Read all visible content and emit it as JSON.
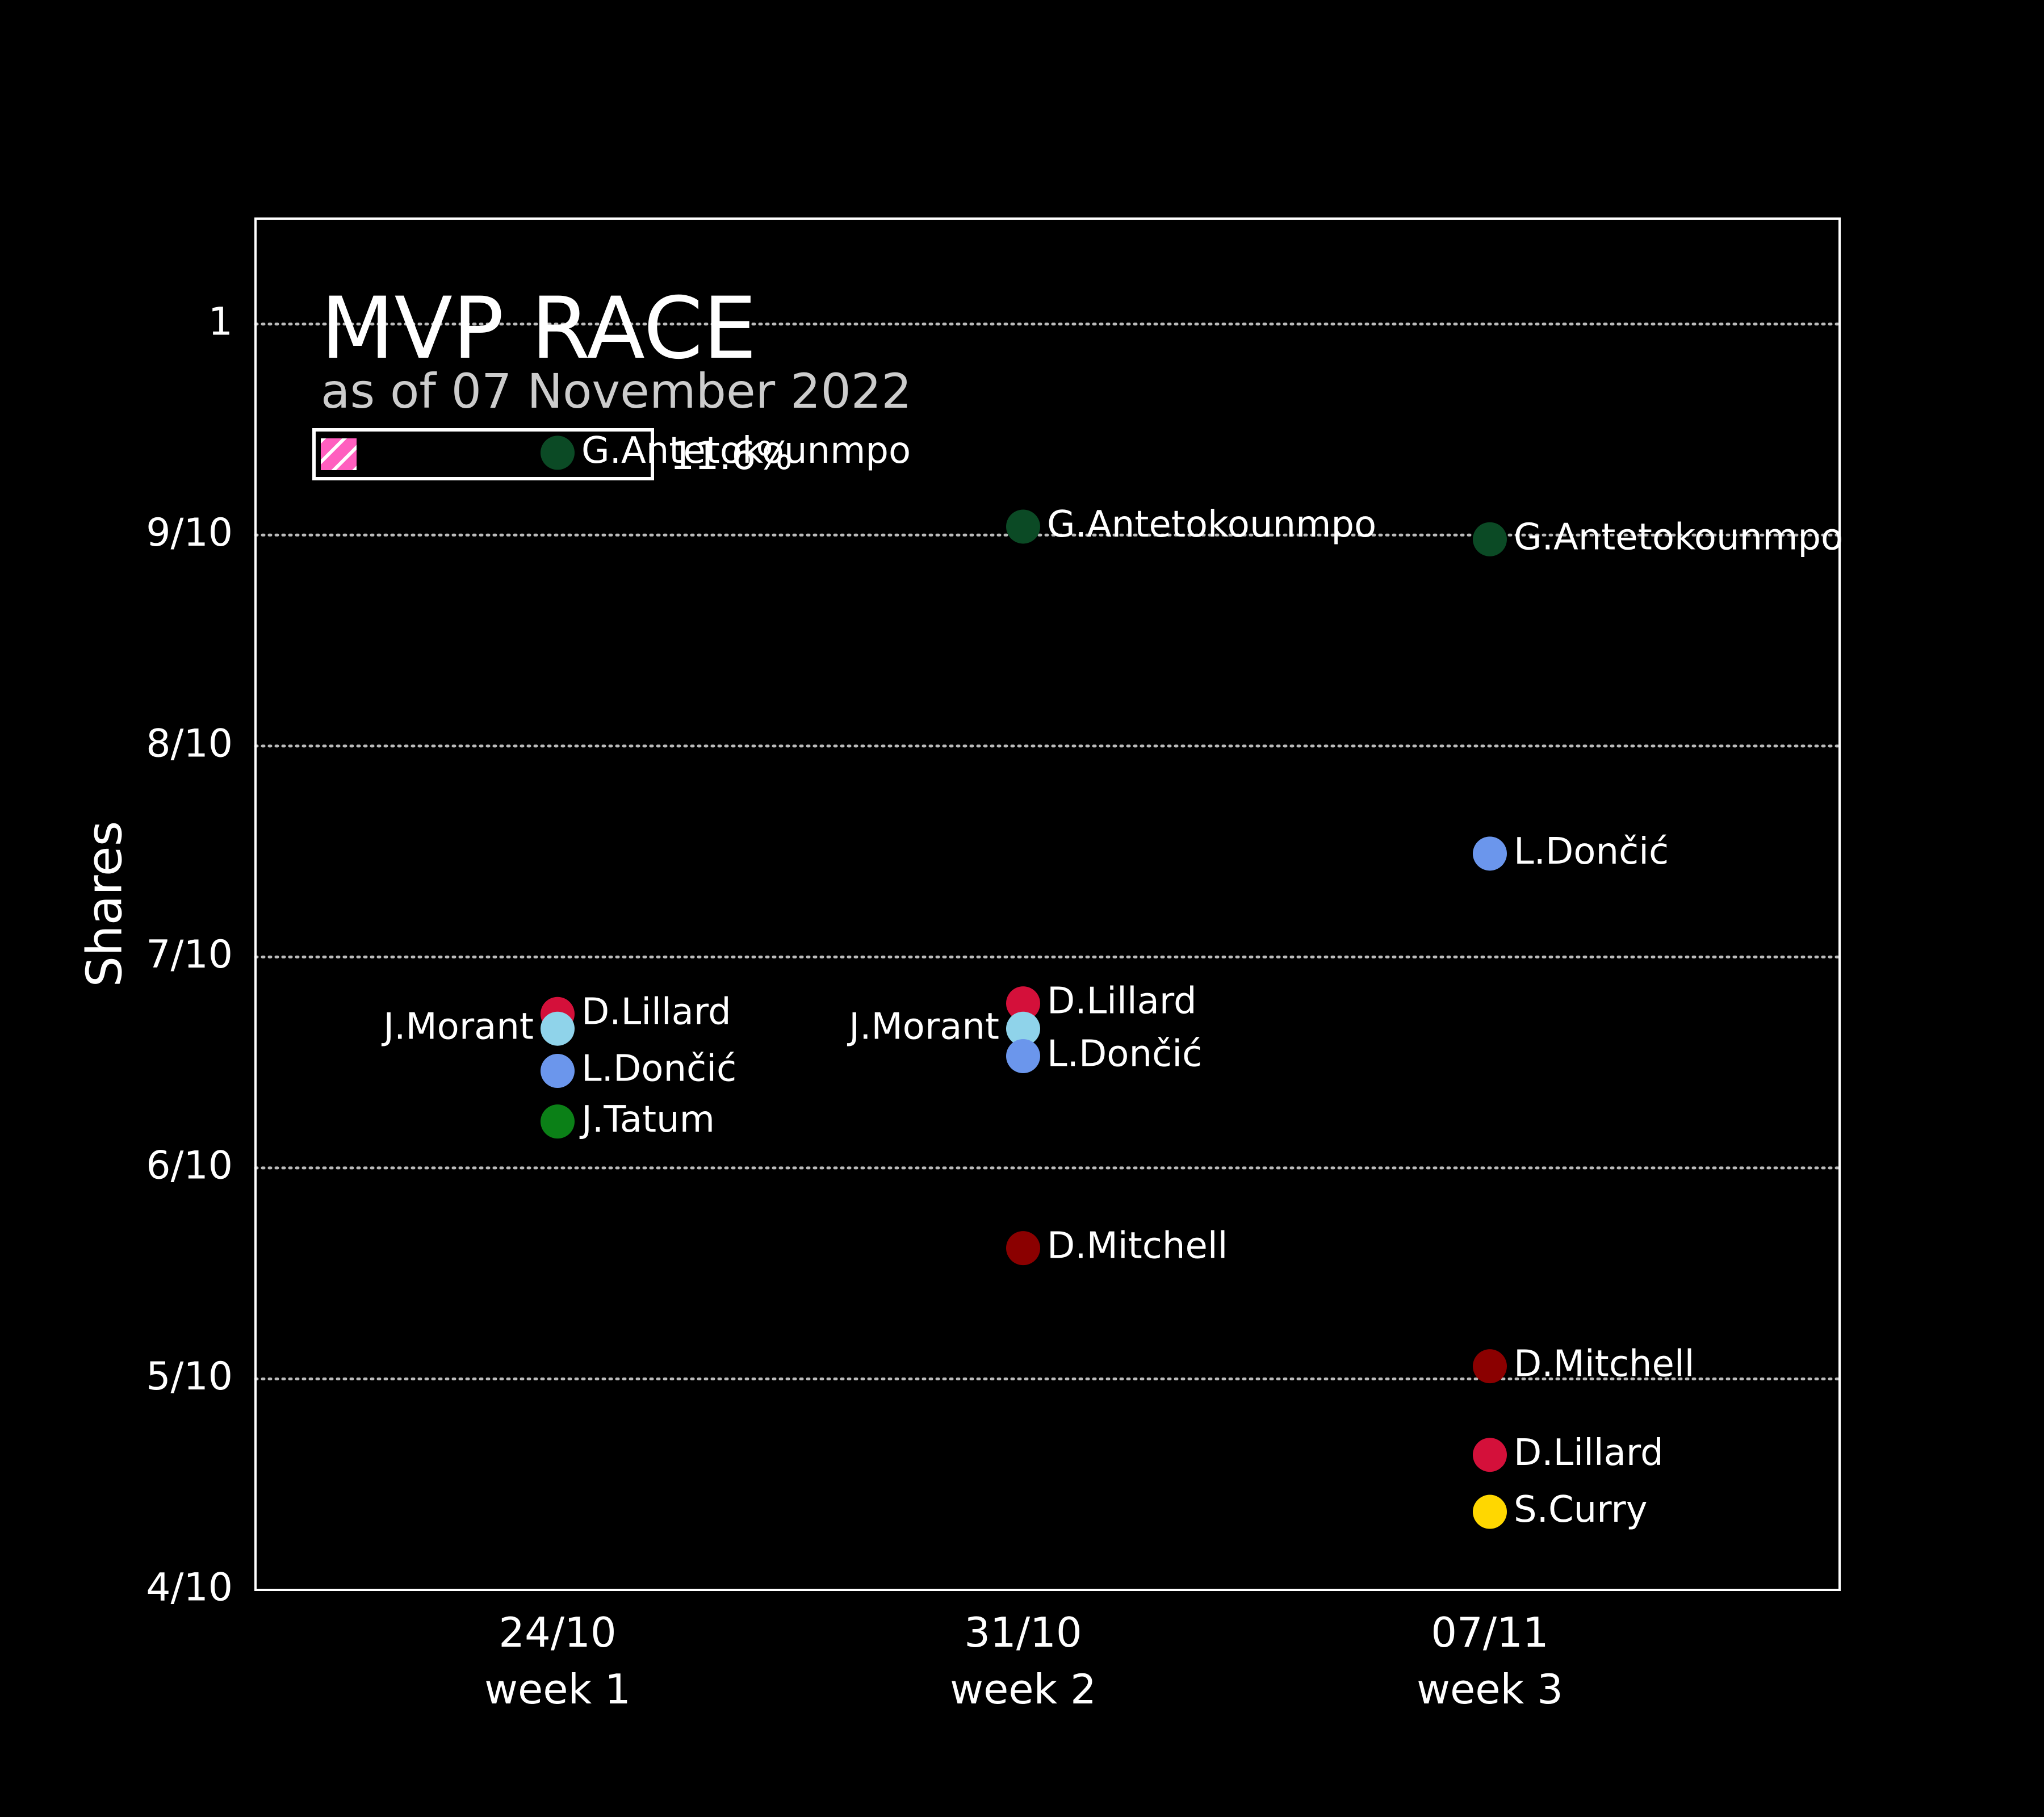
{
  "chart_data": {
    "type": "scatter",
    "title": "MVP RACE",
    "subtitle": "as of 07 November 2022",
    "progress": {
      "value": 0.116,
      "label": "11.6%"
    },
    "ylabel": "Shares",
    "ylim": [
      0.4,
      1.05
    ],
    "y_ticks": [
      {
        "value": 1.0,
        "label": "1"
      },
      {
        "value": 0.9,
        "label": "9/10"
      },
      {
        "value": 0.8,
        "label": "8/10"
      },
      {
        "value": 0.7,
        "label": "7/10"
      },
      {
        "value": 0.6,
        "label": "6/10"
      },
      {
        "value": 0.5,
        "label": "5/10"
      },
      {
        "value": 0.4,
        "label": "4/10"
      }
    ],
    "grid": "horizontal-dotted",
    "x_categories": [
      {
        "date": "24/10",
        "week": "week 1"
      },
      {
        "date": "31/10",
        "week": "week 2"
      },
      {
        "date": "07/11",
        "week": "week 3"
      }
    ],
    "colors": {
      "background": "#000000",
      "frame": "#ffffff",
      "grid": "#bbbbbb",
      "progress_fill": "#ff5fbf"
    },
    "points": [
      {
        "week": 0,
        "player": "G.Antetokounmpo",
        "share": 0.939,
        "color": "#0b4a25",
        "label_side": "right"
      },
      {
        "week": 0,
        "player": "D.Lillard",
        "share": 0.673,
        "color": "#d4103a",
        "label_side": "right"
      },
      {
        "week": 0,
        "player": "J.Morant",
        "share": 0.666,
        "color": "#8fd3ea",
        "label_side": "left"
      },
      {
        "week": 0,
        "player": "L.Dončić",
        "share": 0.646,
        "color": "#6b96ec",
        "label_side": "right"
      },
      {
        "week": 0,
        "player": "J.Tatum",
        "share": 0.622,
        "color": "#0b8017",
        "label_side": "right"
      },
      {
        "week": 1,
        "player": "G.Antetokounmpo",
        "share": 0.904,
        "color": "#0b4a25",
        "label_side": "right"
      },
      {
        "week": 1,
        "player": "D.Lillard",
        "share": 0.678,
        "color": "#d4103a",
        "label_side": "right"
      },
      {
        "week": 1,
        "player": "J.Morant",
        "share": 0.666,
        "color": "#8fd3ea",
        "label_side": "left"
      },
      {
        "week": 1,
        "player": "L.Dončić",
        "share": 0.653,
        "color": "#6b96ec",
        "label_side": "right"
      },
      {
        "week": 1,
        "player": "D.Mitchell",
        "share": 0.562,
        "color": "#8b0000",
        "label_side": "right"
      },
      {
        "week": 2,
        "player": "G.Antetokounmpo",
        "share": 0.898,
        "color": "#0b4a25",
        "label_side": "right"
      },
      {
        "week": 2,
        "player": "L.Dončić",
        "share": 0.749,
        "color": "#6b96ec",
        "label_side": "right"
      },
      {
        "week": 2,
        "player": "D.Mitchell",
        "share": 0.506,
        "color": "#8b0000",
        "label_side": "right"
      },
      {
        "week": 2,
        "player": "D.Lillard",
        "share": 0.464,
        "color": "#d4103a",
        "label_side": "right"
      },
      {
        "week": 2,
        "player": "S.Curry",
        "share": 0.437,
        "color": "#ffd700",
        "label_side": "right"
      }
    ]
  }
}
